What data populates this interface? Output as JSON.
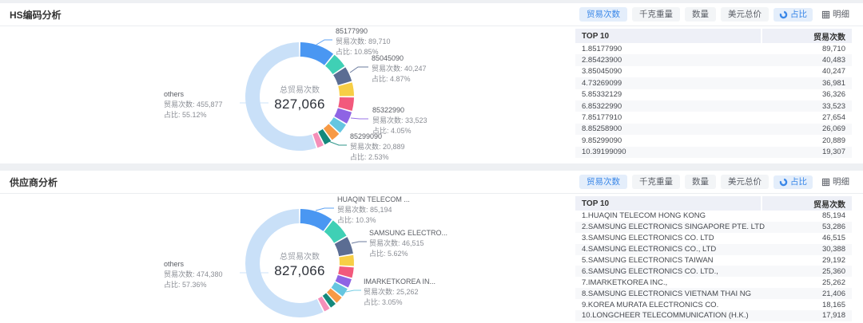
{
  "colors": {
    "accent": "#3a87e8",
    "active_bg": "#e4eefb",
    "palette": [
      "#4a97f2",
      "#3fd0b5",
      "#5b6d93",
      "#f7ce45",
      "#f2597c",
      "#8e64e4",
      "#65c6e0",
      "#f79a45",
      "#15897c",
      "#f58fb9"
    ],
    "others": "#c9e0f8"
  },
  "toolbar": {
    "metric_buttons": [
      "贸易次数",
      "千克重量",
      "数量",
      "美元总价"
    ],
    "active_metric": "贸易次数",
    "share_view": "占比",
    "detail_view": "明细"
  },
  "panels": [
    {
      "title": "HS编码分析",
      "center_label": "总贸易次数",
      "center_value": "827,066",
      "callouts": [
        {
          "title": "85177990",
          "trades": "贸易次数: 89,710",
          "share": "占比: 10.85%"
        },
        {
          "title": "85045090",
          "trades": "贸易次数: 40,247",
          "share": "占比: 4.87%"
        },
        {
          "title": "85322990",
          "trades": "贸易次数: 33,523",
          "share": "占比: 4.05%"
        },
        {
          "title": "85299090",
          "trades": "贸易次数: 20,889",
          "share": "占比: 2.53%"
        },
        {
          "title": "others",
          "trades": "贸易次数: 455,877",
          "share": "占比: 55.12%"
        }
      ],
      "table": {
        "columns": [
          "TOP 10",
          "贸易次数"
        ],
        "rows": [
          [
            "1.85177990",
            "89,710"
          ],
          [
            "2.85423900",
            "40,483"
          ],
          [
            "3.85045090",
            "40,247"
          ],
          [
            "4.73269099",
            "36,981"
          ],
          [
            "5.85332129",
            "36,326"
          ],
          [
            "6.85322990",
            "33,523"
          ],
          [
            "7.85177910",
            "27,654"
          ],
          [
            "8.85258900",
            "26,069"
          ],
          [
            "9.85299090",
            "20,889"
          ],
          [
            "10.39199090",
            "19,307"
          ]
        ]
      },
      "chart_data": {
        "type": "pie",
        "title": "HS编码分析",
        "center_label": "总贸易次数",
        "total": 827066,
        "categories": [
          "85177990",
          "85423900",
          "85045090",
          "73269099",
          "85332129",
          "85322990",
          "85177910",
          "85258900",
          "85299090",
          "39199090",
          "others"
        ],
        "values": [
          89710,
          40483,
          40247,
          36981,
          36326,
          33523,
          27654,
          26069,
          20889,
          19307,
          455877
        ]
      }
    },
    {
      "title": "供应商分析",
      "center_label": "总贸易次数",
      "center_value": "827,066",
      "callouts": [
        {
          "title": "HUAQIN TELECOM ...",
          "trades": "贸易次数: 85,194",
          "share": "占比: 10.3%"
        },
        {
          "title": "SAMSUNG ELECTRO...",
          "trades": "贸易次数: 46,515",
          "share": "占比: 5.62%"
        },
        {
          "title": "IMARKETKOREA IN...",
          "trades": "贸易次数: 25,262",
          "share": "占比: 3.05%"
        },
        {
          "title": "others",
          "trades": "贸易次数: 474,380",
          "share": "占比: 57.36%"
        }
      ],
      "table": {
        "columns": [
          "TOP 10",
          "贸易次数"
        ],
        "rows": [
          [
            "1.HUAQIN TELECOM HONG KONG",
            "85,194"
          ],
          [
            "2.SAMSUNG ELECTRONICS SINGAPORE PTE. LTD",
            "53,286"
          ],
          [
            "3.SAMSUNG ELECTRONICS CO. LTD",
            "46,515"
          ],
          [
            "4.SAMSUNG ELECTRONICS CO., LTD",
            "30,388"
          ],
          [
            "5.SAMSUNG ELECTRONICS TAIWAN",
            "29,192"
          ],
          [
            "6.SAMSUNG ELECTRONICS CO. LTD.,",
            "25,360"
          ],
          [
            "7.IMARKETKOREA INC.,",
            "25,262"
          ],
          [
            "8.SAMSUNG ELECTRONICS VIETNAM THAI NG",
            "21,406"
          ],
          [
            "9.KOREA MURATA ELECTRONICS CO.",
            "18,165"
          ],
          [
            "10.LONGCHEER TELECOMMUNICATION (H.K.)",
            "17,918"
          ]
        ]
      },
      "chart_data": {
        "type": "pie",
        "title": "供应商分析",
        "center_label": "总贸易次数",
        "total": 827066,
        "categories": [
          "HUAQIN TELECOM HONG KONG",
          "SAMSUNG ELECTRONICS SINGAPORE PTE. LTD",
          "SAMSUNG ELECTRONICS CO. LTD",
          "SAMSUNG ELECTRONICS CO., LTD",
          "SAMSUNG ELECTRONICS TAIWAN",
          "SAMSUNG ELECTRONICS CO. LTD.,",
          "IMARKETKOREA INC.,",
          "SAMSUNG ELECTRONICS VIETNAM THAI NG",
          "KOREA MURATA ELECTRONICS CO.",
          "LONGCHEER TELECOMMUNICATION (H.K.)",
          "others"
        ],
        "values": [
          85194,
          53286,
          46515,
          30388,
          29192,
          25360,
          25262,
          21406,
          18165,
          17918,
          474380
        ]
      }
    }
  ]
}
